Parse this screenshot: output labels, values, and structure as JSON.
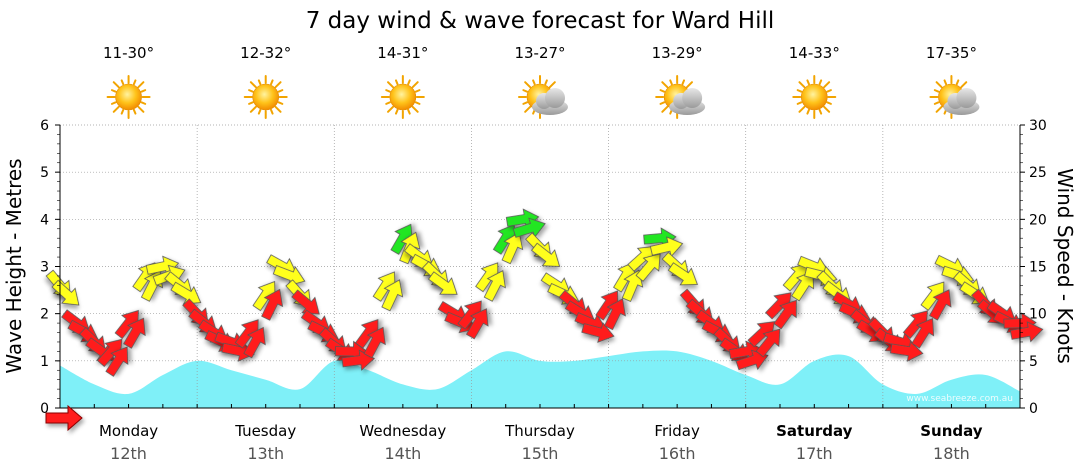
{
  "header": {
    "title": "7 day wind & wave forecast for Ward Hill"
  },
  "days": [
    {
      "name": "Monday",
      "date": "12th",
      "temp": "11-30°",
      "weather": "sunny-icon",
      "weekend": false
    },
    {
      "name": "Tuesday",
      "date": "13th",
      "temp": "12-32°",
      "weather": "sunny-icon",
      "weekend": false
    },
    {
      "name": "Wednesday",
      "date": "14th",
      "temp": "14-31°",
      "weather": "sunny-icon",
      "weekend": false
    },
    {
      "name": "Thursday",
      "date": "15th",
      "temp": "13-27°",
      "weather": "partly-cloudy-icon",
      "weekend": false
    },
    {
      "name": "Friday",
      "date": "16th",
      "temp": "13-29°",
      "weather": "partly-cloudy-icon",
      "weekend": false
    },
    {
      "name": "Saturday",
      "date": "17th",
      "temp": "14-33°",
      "weather": "sunny-icon",
      "weekend": true
    },
    {
      "name": "Sunday",
      "date": "18th",
      "temp": "17-35°",
      "weather": "partly-cloudy-icon",
      "weekend": true
    }
  ],
  "watermark": "www.seabreeze.com.au",
  "colors": {
    "wave_fill": "#7ff0f8",
    "wind_low": "#ff1a1a",
    "wind_mid": "#ffff1a",
    "wind_high": "#22e622",
    "grid": "#9a9a9a"
  },
  "chart_data": {
    "type": "area",
    "title": "7 day wind & wave forecast for Ward Hill",
    "ylabel": "Wave Height - Metres",
    "y2label": "Wind Speed - Knots",
    "ylim": [
      0,
      6
    ],
    "y2lim": [
      0,
      30
    ],
    "yticks": [
      "0",
      "1",
      "2",
      "3",
      "4",
      "5",
      "6"
    ],
    "y2ticks": [
      "0",
      "5",
      "10",
      "15",
      "20",
      "25",
      "30"
    ],
    "grid": true,
    "x_unit": "hours from Monday 00:00",
    "waves": {
      "name": "Wave Height (m)",
      "x": [
        0,
        6,
        12,
        18,
        24,
        30,
        36,
        42,
        48,
        54,
        60,
        66,
        72,
        78,
        84,
        90,
        96,
        102,
        108,
        114,
        120,
        126,
        132,
        138,
        144,
        150,
        156,
        162,
        168
      ],
      "values": [
        0.9,
        0.5,
        0.3,
        0.7,
        1.0,
        0.8,
        0.6,
        0.4,
        1.0,
        0.8,
        0.5,
        0.4,
        0.8,
        1.2,
        1.0,
        1.0,
        1.1,
        1.2,
        1.2,
        1.0,
        0.7,
        0.5,
        1.0,
        1.1,
        0.5,
        0.3,
        0.6,
        0.7,
        0.35
      ]
    },
    "wind": {
      "name": "Wind Speed (knots)",
      "x": [
        0,
        3,
        6,
        9,
        12,
        15,
        18,
        21,
        24,
        27,
        30,
        33,
        36,
        39,
        42,
        45,
        48,
        51,
        54,
        57,
        60,
        63,
        66,
        69,
        72,
        75,
        78,
        81,
        84,
        87,
        90,
        93,
        96,
        99,
        102,
        105,
        108,
        111,
        114,
        117,
        120,
        123,
        126,
        129,
        132,
        135,
        138,
        141,
        144,
        147,
        150,
        153,
        156,
        159,
        162,
        165,
        168
      ],
      "values": [
        13,
        9,
        7,
        6,
        9,
        14,
        15,
        13,
        10,
        8,
        7,
        8,
        12,
        15,
        12,
        9,
        7,
        6,
        8,
        13,
        18,
        16,
        14,
        10,
        10,
        14,
        18,
        20,
        17,
        13,
        11,
        9,
        11,
        14,
        16,
        18,
        15,
        11,
        9,
        7,
        6,
        8,
        11,
        14,
        15,
        13,
        11,
        9,
        8,
        7,
        9,
        12,
        15,
        13,
        11,
        10,
        9
      ]
    }
  }
}
